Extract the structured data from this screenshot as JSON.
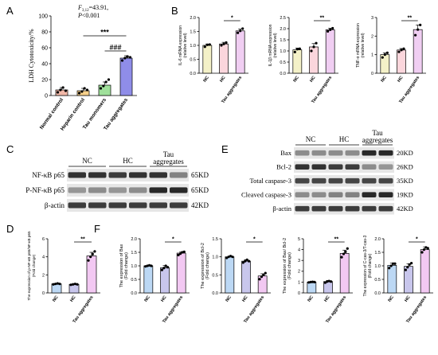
{
  "panels": {
    "A": {
      "letter": "A"
    },
    "B": {
      "letter": "B"
    },
    "C": {
      "letter": "C"
    },
    "D": {
      "letter": "D"
    },
    "E": {
      "letter": "E"
    },
    "F": {
      "letter": "F"
    }
  },
  "blot_c": {
    "groups": [
      "NC",
      "HC",
      "Tau aggregates"
    ],
    "rows": [
      {
        "label": "NF-κB p65",
        "size": "65KD",
        "pattern": [
          0.9,
          0.9,
          0.85,
          0.9,
          0.9,
          0.5
        ]
      },
      {
        "label": "P-NF-κB p65",
        "size": "65KD",
        "pattern": [
          0.4,
          0.45,
          0.4,
          0.45,
          0.95,
          0.95
        ]
      },
      {
        "label": "β-actin",
        "size": "42KD",
        "pattern": [
          0.85,
          0.85,
          0.85,
          0.85,
          0.85,
          0.85
        ]
      }
    ]
  },
  "blot_e": {
    "groups": [
      "NC",
      "HC",
      "Tau aggregates"
    ],
    "rows": [
      {
        "label": "Bax",
        "size": "20KD",
        "pattern": [
          0.45,
          0.45,
          0.45,
          0.45,
          0.95,
          0.95
        ]
      },
      {
        "label": "Bcl-2",
        "size": "26KD",
        "pattern": [
          0.9,
          0.9,
          0.85,
          0.85,
          0.45,
          0.4
        ]
      },
      {
        "label": "Total caspase-3",
        "size": "35KD",
        "pattern": [
          0.8,
          0.8,
          0.8,
          0.8,
          0.8,
          0.8
        ]
      },
      {
        "label": "Cleaved caspase-3",
        "size": "19KD",
        "pattern": [
          0.45,
          0.45,
          0.5,
          0.5,
          0.95,
          0.95
        ]
      },
      {
        "label": "β-actin",
        "size": "42KD",
        "pattern": [
          0.85,
          0.85,
          0.85,
          0.85,
          0.85,
          0.85
        ]
      }
    ]
  },
  "chart_data": [
    {
      "id": "A",
      "type": "bar",
      "ylabel": "LDH Cytotoxicity/%",
      "ylim": [
        0,
        100
      ],
      "yticks": [
        0,
        20,
        40,
        60,
        80,
        100
      ],
      "categories": [
        "Normal control",
        "Heparin control",
        "Tau monomers",
        "Tau aggregates"
      ],
      "values": [
        7,
        6,
        13,
        47
      ],
      "errors": [
        3,
        3,
        4,
        3
      ],
      "points": [
        [
          4,
          7,
          10,
          6
        ],
        [
          3,
          5,
          9,
          7
        ],
        [
          9,
          12,
          17,
          20
        ],
        [
          44,
          47,
          49,
          48
        ]
      ],
      "colors": [
        "#f2b8a8",
        "#f7d08a",
        "#9fe09a",
        "#8f8de8"
      ],
      "annotation_stat": "F",
      "annotation_stat_sub": "3,12",
      "annotation_stat_value": "=43.91,",
      "annotation_p": "P",
      "annotation_p_value": "<0.001",
      "sig": [
        {
          "from": 1,
          "to": 3,
          "text": "***"
        },
        {
          "from": 2,
          "to": 3,
          "text": "###"
        }
      ]
    },
    {
      "id": "B1",
      "type": "bar",
      "ylabel": "IL-6 mRNA expression",
      "ylabel2": "(relative level)",
      "ylim": [
        0,
        2.0
      ],
      "yticks": [
        0.0,
        0.5,
        1.0,
        1.5,
        2.0
      ],
      "categories": [
        "NC",
        "HC",
        "Tau aggregates"
      ],
      "values": [
        1.0,
        1.05,
        1.52
      ],
      "errors": [
        0.05,
        0.06,
        0.07
      ],
      "points": [
        [
          0.95,
          1.02,
          1.03
        ],
        [
          1.0,
          1.05,
          1.1
        ],
        [
          1.45,
          1.52,
          1.6
        ]
      ],
      "colors": [
        "#f4f1c8",
        "#fbd6dc",
        "#f0cef2"
      ],
      "sig": [
        {
          "from": 1,
          "to": 2,
          "text": "*"
        }
      ]
    },
    {
      "id": "B2",
      "type": "bar",
      "ylabel": "IL-1β mRNA expression",
      "ylabel2": "(relative level)",
      "ylim": [
        0,
        2.5
      ],
      "yticks": [
        0.0,
        0.5,
        1.0,
        1.5,
        2.0,
        2.5
      ],
      "categories": [
        "NC",
        "HC",
        "Tau aggregates"
      ],
      "values": [
        1.05,
        1.18,
        1.95
      ],
      "errors": [
        0.08,
        0.15,
        0.07
      ],
      "points": [
        [
          0.95,
          1.08,
          1.1
        ],
        [
          1.0,
          1.18,
          1.35
        ],
        [
          1.88,
          1.95,
          2.02
        ]
      ],
      "colors": [
        "#f4f1c8",
        "#fbd6dc",
        "#f0cef2"
      ],
      "sig": [
        {
          "from": 1,
          "to": 2,
          "text": "**"
        }
      ]
    },
    {
      "id": "B3",
      "type": "bar",
      "ylabel": "TNF-α mRNA expression",
      "ylabel2": "(relative level)",
      "ylim": [
        0,
        3
      ],
      "yticks": [
        0,
        1,
        2,
        3
      ],
      "categories": [
        "NC",
        "HC",
        "Tau aggregates"
      ],
      "values": [
        1.0,
        1.25,
        2.35
      ],
      "errors": [
        0.1,
        0.08,
        0.25
      ],
      "points": [
        [
          0.85,
          1.0,
          1.1
        ],
        [
          1.15,
          1.25,
          1.32
        ],
        [
          2.05,
          2.35,
          2.6
        ]
      ],
      "colors": [
        "#f4f1c8",
        "#fbd6dc",
        "#f0cef2"
      ],
      "sig": [
        {
          "from": 1,
          "to": 2,
          "text": "**"
        }
      ]
    },
    {
      "id": "D",
      "type": "bar",
      "ylabel": "The expression of p-NF-κB p65/NF-κB p65",
      "ylabel2": "(Fold change)",
      "ylim": [
        0,
        6
      ],
      "yticks": [
        0,
        2,
        4,
        6
      ],
      "categories": [
        "NC",
        "HC",
        "Tau aggregates"
      ],
      "values": [
        1.0,
        0.95,
        4.1
      ],
      "errors": [
        0.05,
        0.06,
        0.4
      ],
      "points": [
        [
          0.95,
          1.0,
          1.05,
          1.0
        ],
        [
          0.9,
          0.95,
          1.0,
          0.95
        ],
        [
          3.6,
          4.0,
          4.3,
          4.6
        ]
      ],
      "colors": [
        "#bcd8f4",
        "#c8c6ec",
        "#f2c8f2"
      ],
      "sig": [
        {
          "from": 1,
          "to": 2,
          "text": "**"
        }
      ]
    },
    {
      "id": "F1",
      "type": "bar",
      "ylabel": "The expression of Bax",
      "ylabel2": "(Fold change)",
      "ylim": [
        0,
        2.0
      ],
      "yticks": [
        0.0,
        0.5,
        1.0,
        1.5,
        2.0
      ],
      "categories": [
        "NC",
        "HC",
        "Tau aggregates"
      ],
      "values": [
        1.0,
        0.93,
        1.47
      ],
      "errors": [
        0.02,
        0.08,
        0.05
      ],
      "points": [
        [
          0.98,
          1.0,
          1.02,
          1.0
        ],
        [
          0.85,
          0.92,
          1.0,
          0.95
        ],
        [
          1.4,
          1.45,
          1.5,
          1.52
        ]
      ],
      "colors": [
        "#bcd8f4",
        "#c8c6ec",
        "#f2c8f2"
      ],
      "sig": [
        {
          "from": 1,
          "to": 2,
          "text": "*"
        }
      ]
    },
    {
      "id": "F2",
      "type": "bar",
      "ylabel": "The expression of Bcl-2",
      "ylabel2": "(Fold change)",
      "ylim": [
        0,
        1.5
      ],
      "yticks": [
        0.0,
        0.5,
        1.0,
        1.5
      ],
      "categories": [
        "NC",
        "HC",
        "Tau aggregates"
      ],
      "values": [
        1.0,
        0.88,
        0.47
      ],
      "errors": [
        0.02,
        0.04,
        0.06
      ],
      "points": [
        [
          0.97,
          1.0,
          1.02,
          1.0
        ],
        [
          0.84,
          0.88,
          0.92,
          0.88
        ],
        [
          0.38,
          0.45,
          0.5,
          0.55
        ]
      ],
      "colors": [
        "#bcd8f4",
        "#c8c6ec",
        "#f2c8f2"
      ],
      "sig": [
        {
          "from": 1,
          "to": 2,
          "text": "*"
        }
      ]
    },
    {
      "id": "F3",
      "type": "bar",
      "ylabel": "The expression of Bax/ Bcl-2",
      "ylabel2": "(Fold change)",
      "ylim": [
        0,
        5
      ],
      "yticks": [
        0,
        1,
        2,
        3,
        4,
        5
      ],
      "categories": [
        "NC",
        "HC",
        "Tau aggregates"
      ],
      "values": [
        1.0,
        1.05,
        3.65
      ],
      "errors": [
        0.03,
        0.1,
        0.3
      ],
      "points": [
        [
          0.97,
          1.0,
          1.02,
          1.0
        ],
        [
          0.95,
          1.05,
          1.1,
          1.05
        ],
        [
          3.3,
          3.6,
          3.8,
          4.1
        ]
      ],
      "colors": [
        "#bcd8f4",
        "#c8c6ec",
        "#f2c8f2"
      ],
      "sig": [
        {
          "from": 1,
          "to": 2,
          "text": "**"
        }
      ]
    },
    {
      "id": "F4",
      "type": "bar",
      "ylabel": "The expression of C-cas-3/T-cas-3",
      "ylabel2": "(Fold change)",
      "ylim": [
        0,
        2.0
      ],
      "yticks": [
        0.0,
        0.5,
        1.0,
        1.5,
        2.0
      ],
      "categories": [
        "NC",
        "HC",
        "Tau aggregates"
      ],
      "values": [
        1.02,
        0.98,
        1.6
      ],
      "errors": [
        0.08,
        0.1,
        0.1
      ],
      "points": [
        [
          0.92,
          1.0,
          1.08,
          1.08
        ],
        [
          0.85,
          0.95,
          1.05,
          1.1
        ],
        [
          1.5,
          1.6,
          1.68,
          1.65
        ]
      ],
      "colors": [
        "#bcd8f4",
        "#c8c6ec",
        "#f2c8f2"
      ],
      "sig": [
        {
          "from": 1,
          "to": 2,
          "text": "*"
        }
      ]
    }
  ]
}
